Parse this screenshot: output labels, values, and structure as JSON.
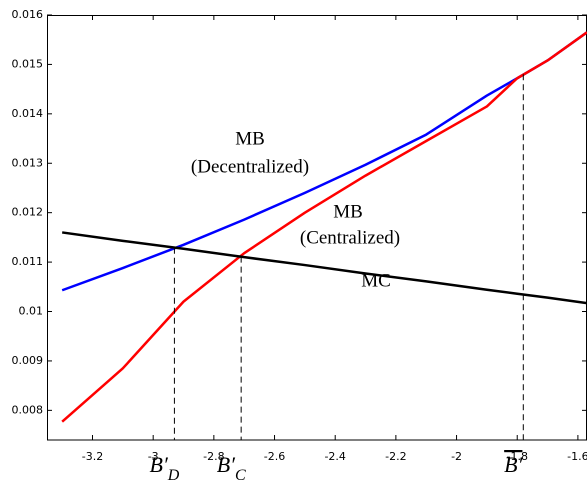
{
  "chart_data": {
    "type": "line",
    "x": [
      -3.3,
      -3.1,
      -2.9,
      -2.7,
      -2.5,
      -2.3,
      -2.1,
      -1.9,
      -1.8,
      -1.7,
      -1.57
    ],
    "series": [
      {
        "color": "#0000ff",
        "values": [
          0.01043,
          0.01088,
          0.01135,
          0.01186,
          0.0124,
          0.01297,
          0.01358,
          0.01437,
          0.01472,
          0.01508,
          0.01565
        ]
      },
      {
        "color": "#ff0000",
        "values": [
          0.00777,
          0.00885,
          0.0102,
          0.01118,
          0.012,
          0.01275,
          0.01345,
          0.01415,
          0.01472,
          0.01508,
          0.01565
        ]
      },
      {
        "color": "#000000",
        "values": [
          0.0116,
          0.01143,
          0.01127,
          0.0111,
          0.01094,
          0.01077,
          0.01061,
          0.01044,
          0.01036,
          0.01028,
          0.01017
        ]
      }
    ],
    "annotations": [
      "MB",
      "(Decentralized)",
      "MB",
      "(Centralized)",
      "MC"
    ],
    "markers": [
      {
        "x": -2.93,
        "y": 0.01129,
        "label": "B′",
        "sub": "D"
      },
      {
        "x": -2.71,
        "y": 0.01111,
        "label": "B′",
        "sub": "C"
      },
      {
        "x": -1.78,
        "y": 0.0148,
        "label": "B′",
        "bar": true
      }
    ],
    "xlim": [
      -3.35,
      -1.57
    ],
    "ylim": [
      0.0074,
      0.016
    ],
    "xticks": [
      -3.2,
      -3,
      -2.8,
      -2.6,
      -2.4,
      -2.2,
      -2,
      -1.8,
      -1.6
    ],
    "yticks": [
      0.008,
      0.009,
      0.01,
      0.011,
      0.012,
      0.013,
      0.014,
      0.015,
      0.016
    ]
  }
}
